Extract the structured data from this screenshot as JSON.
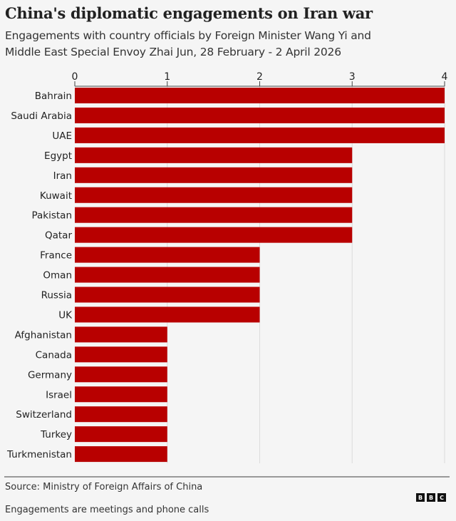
{
  "chart_data": {
    "type": "bar",
    "orientation": "horizontal",
    "title": "China's diplomatic engagements on Iran war",
    "subtitle": [
      "Engagements with country officials by Foreign Minister Wang Yi and",
      "Middle East Special Envoy Zhai Jun, 28 February - 2 April 2026"
    ],
    "categories": [
      "Bahrain",
      "Saudi Arabia",
      "UAE",
      "Egypt",
      "Iran",
      "Kuwait",
      "Pakistan",
      "Qatar",
      "France",
      "Oman",
      "Russia",
      "UK",
      "Afghanistan",
      "Canada",
      "Germany",
      "Israel",
      "Switzerland",
      "Turkey",
      "Turkmenistan"
    ],
    "values": [
      4,
      4,
      4,
      3,
      3,
      3,
      3,
      3,
      2,
      2,
      2,
      2,
      1,
      1,
      1,
      1,
      1,
      1,
      1
    ],
    "xlim": [
      0,
      4
    ],
    "xticks": [
      "0",
      "1",
      "2",
      "3",
      "4"
    ],
    "xlabel": "",
    "ylabel": "",
    "grid": true,
    "bar_color": "#b80000"
  },
  "footer": {
    "source": "Source: Ministry of Foreign Affairs of China",
    "note": "Engagements are meetings and phone calls",
    "logo": [
      "B",
      "B",
      "C"
    ]
  }
}
